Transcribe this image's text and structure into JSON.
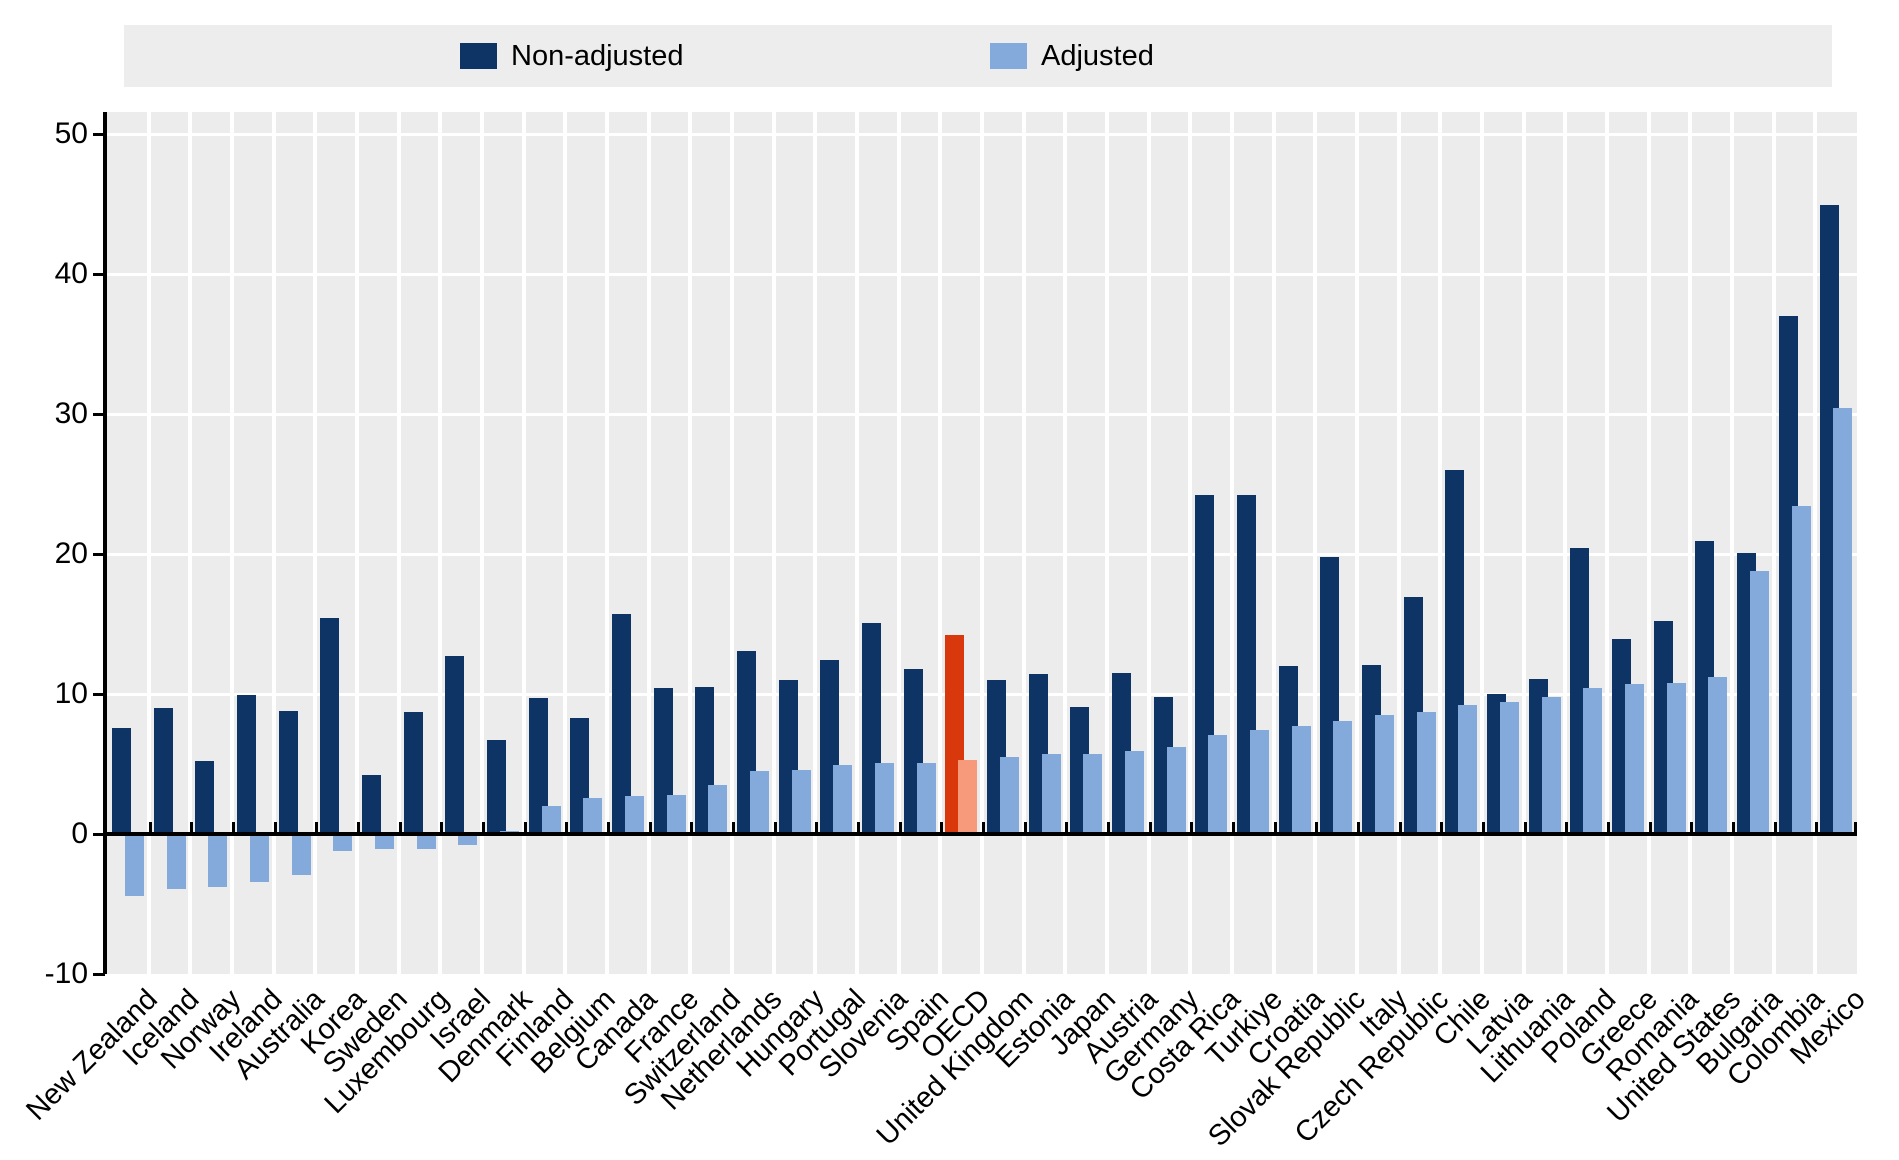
{
  "legend": {
    "items": [
      {
        "label": "Non-adjusted",
        "color": "#0d3464"
      },
      {
        "label": "Adjusted",
        "color": "#84aadc"
      }
    ]
  },
  "chart_data": {
    "type": "bar",
    "title": "",
    "categories": [
      "New Zealand",
      "Iceland",
      "Norway",
      "Ireland",
      "Australia",
      "Korea",
      "Sweden",
      "Luxembourg",
      "Israel",
      "Denmark",
      "Finland",
      "Belgium",
      "Canada",
      "France",
      "Switzerland",
      "Netherlands",
      "Hungary",
      "Portugal",
      "Slovenia",
      "Spain",
      "OECD",
      "United Kingdom",
      "Estonia",
      "Japan",
      "Austria",
      "Germany",
      "Costa Rica",
      "Turkiye",
      "Croatia",
      "Slovak Republic",
      "Italy",
      "Czech Republic",
      "Chile",
      "Latvia",
      "Lithuania",
      "Poland",
      "Greece",
      "Romania",
      "United States",
      "Bulgaria",
      "Colombia",
      "Mexico"
    ],
    "series": [
      {
        "name": "Non-adjusted",
        "color": "#0d3464",
        "highlight_color": "#d9380d",
        "values": [
          7.6,
          9.0,
          5.2,
          9.9,
          8.8,
          15.4,
          4.2,
          8.7,
          12.7,
          6.7,
          9.7,
          8.3,
          15.7,
          10.4,
          10.5,
          13.1,
          11.0,
          12.4,
          15.1,
          11.8,
          14.2,
          11.0,
          11.4,
          9.1,
          11.5,
          9.8,
          24.2,
          24.2,
          12.0,
          19.8,
          12.1,
          16.9,
          26.0,
          10.0,
          11.1,
          20.4,
          13.9,
          15.2,
          20.9,
          20.1,
          37.0,
          44.9
        ]
      },
      {
        "name": "Adjusted",
        "color": "#84aadc",
        "highlight_color": "#f69a7b",
        "values": [
          -4.4,
          -3.9,
          -3.8,
          -3.4,
          -2.9,
          -1.2,
          -1.1,
          -1.1,
          -0.8,
          0.2,
          2.0,
          2.6,
          2.7,
          2.8,
          3.5,
          4.5,
          4.6,
          4.9,
          5.1,
          5.1,
          5.3,
          5.5,
          5.7,
          5.7,
          5.9,
          6.2,
          7.1,
          7.4,
          7.7,
          8.1,
          8.5,
          8.7,
          9.2,
          9.4,
          9.8,
          10.4,
          10.7,
          10.8,
          11.2,
          18.8,
          23.4,
          30.4
        ]
      }
    ],
    "highlight_category": "OECD",
    "ylim": [
      -10,
      50
    ],
    "yticks": [
      50,
      40,
      30,
      20,
      10,
      0,
      -10
    ],
    "grid": "horizontal white gridlines on gray panel",
    "legend_position": "top"
  }
}
